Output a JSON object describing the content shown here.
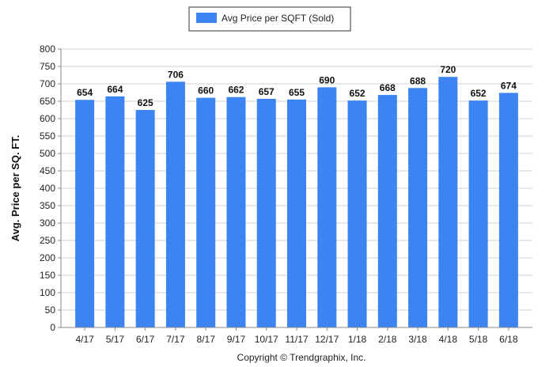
{
  "chart_data": {
    "type": "bar",
    "categories": [
      "4/17",
      "5/17",
      "6/17",
      "7/17",
      "8/17",
      "9/17",
      "10/17",
      "11/17",
      "12/17",
      "1/18",
      "2/18",
      "3/18",
      "4/18",
      "5/18",
      "6/18"
    ],
    "series": [
      {
        "name": "Avg Price per SQFT (Sold)",
        "values": [
          654,
          664,
          625,
          706,
          660,
          662,
          657,
          655,
          690,
          652,
          668,
          688,
          720,
          652,
          674
        ]
      }
    ],
    "ylabel": "Avg. Price per SQ. FT.",
    "xlabel": "",
    "ylim": [
      0,
      800
    ],
    "ytick_step": 50,
    "grid": true,
    "legend_position": "top-center",
    "data_labels": true
  },
  "footer": {
    "copyright": "Copyright © Trendgraphix, Inc."
  },
  "colors": {
    "bar": "#3b84f2",
    "grid": "#d0d0d0",
    "axis": "#888888"
  }
}
